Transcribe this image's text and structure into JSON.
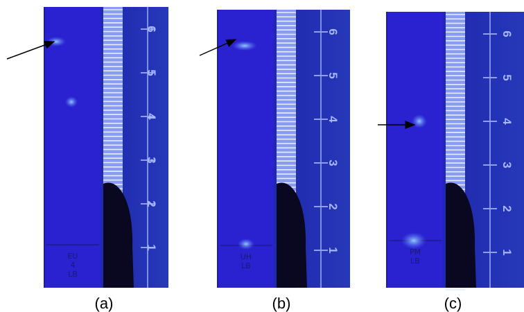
{
  "panels": [
    {
      "label": "(a)",
      "plate_text": [
        "EU",
        "4",
        "LB"
      ],
      "ruler_numbers": [
        "6",
        "5",
        "4",
        "3",
        "2",
        "1"
      ]
    },
    {
      "label": "(b)",
      "plate_text": [
        "UH",
        "LB"
      ],
      "ruler_numbers": [
        "6",
        "5",
        "4",
        "3",
        "2",
        "1"
      ]
    },
    {
      "label": "(c)",
      "plate_text": [
        "PM",
        "LB"
      ],
      "ruler_numbers": [
        "6",
        "5",
        "4",
        "3",
        "2",
        "1"
      ]
    }
  ]
}
